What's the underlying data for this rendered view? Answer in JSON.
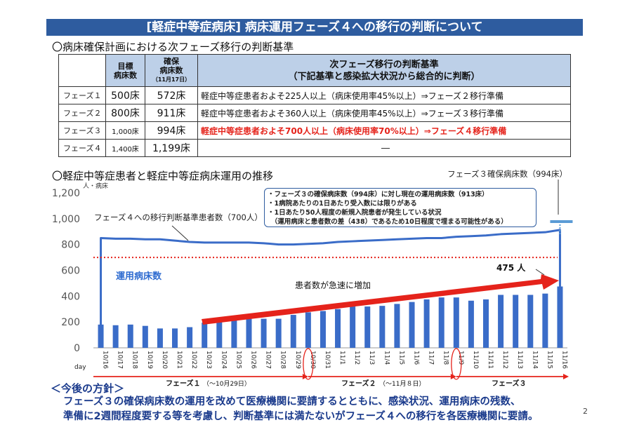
{
  "title": "[軽症中等症病床] 病床運用フェーズ４への移行の判断について",
  "section1": "〇病床確保計画における次フェーズ移行の判断基準",
  "table": {
    "head_target": [
      "目標",
      "病床数"
    ],
    "head_secured": [
      "確保",
      "病床数",
      "（11月17日）"
    ],
    "head_criteria": [
      "次フェーズ移行の判断基準",
      "（下記基準と感染拡大状況から総合的に判断）"
    ],
    "rows": [
      {
        "phase": "フェーズ１",
        "target": "500床",
        "secured": "572床",
        "criteria": "軽症中等症患者およそ225人以上（病床使用率45%以上）⇒フェーズ２移行準備",
        "red": false,
        "small": false
      },
      {
        "phase": "フェーズ２",
        "target": "800床",
        "secured": "911床",
        "criteria": "軽症中等症患者およそ360人以上（病床使用率45%以上）⇒フェーズ３移行準備",
        "red": false,
        "small": false
      },
      {
        "phase": "フェーズ３",
        "target": "1,000床",
        "secured": "994床",
        "criteria": "軽症中等症患者およそ700人以上（病床使用率70%以上）⇒フェーズ４移行準備",
        "red": true,
        "small": true
      },
      {
        "phase": "フェーズ４",
        "target": "1,400床",
        "secured": "1,199床",
        "criteria": "―",
        "red": false,
        "small": true
      }
    ]
  },
  "section2": "〇軽症中等症患者と軽症中等症病床運用の推移",
  "chart_data": {
    "type": "bar",
    "ylabel": "人・病床",
    "xlabel": "day",
    "ylim": [
      0,
      1200
    ],
    "yticks": [
      "0",
      "200",
      "400",
      "600",
      "800",
      "1,000",
      "1,200"
    ],
    "categories": [
      "10/16",
      "10/17",
      "10/18",
      "10/19",
      "10/20",
      "10/21",
      "10/22",
      "10/23",
      "10/24",
      "10/25",
      "10/26",
      "10/27",
      "10/28",
      "10/29",
      "10/30",
      "10/31",
      "11/1",
      "11/2",
      "11/3",
      "11/4",
      "11/5",
      "11/6",
      "11/7",
      "11/8",
      "11/9",
      "11/10",
      "11/11",
      "11/12",
      "11/13",
      "11/14",
      "11/15",
      "11/16"
    ],
    "series": [
      {
        "name": "患者数",
        "values": [
          180,
          175,
          180,
          170,
          150,
          150,
          160,
          195,
          200,
          220,
          225,
          225,
          225,
          255,
          275,
          285,
          300,
          320,
          320,
          325,
          340,
          355,
          375,
          390,
          390,
          365,
          375,
          410,
          410,
          410,
          420,
          475
        ]
      },
      {
        "name": "運用病床数",
        "values": [
          850,
          845,
          845,
          840,
          840,
          830,
          820,
          815,
          815,
          815,
          815,
          810,
          800,
          800,
          805,
          810,
          820,
          825,
          830,
          835,
          840,
          845,
          850,
          850,
          860,
          865,
          870,
          880,
          885,
          890,
          895,
          913
        ]
      }
    ],
    "threshold_label": "フェーズ４への移行判断基準患者数（700人）",
    "threshold_value": 700,
    "line_label": "運用病床数",
    "phase3_label": "フェーズ３確保病床数（994床）",
    "phase3_value": 994,
    "last_label": "475 人",
    "trend_label": "患者数が急速に増加",
    "phases": [
      {
        "name": "フェーズ１",
        "note": "（～10月29日）"
      },
      {
        "name": "フェーズ２",
        "note": "（～11月８日）"
      },
      {
        "name": "フェーズ３",
        "note": ""
      }
    ],
    "colors": {
      "bar": "#3a6cc8",
      "line": "#3a6cc8",
      "threshold": "#e5231b",
      "arrow": "#e5231b",
      "phase3": "#5b9bd5"
    }
  },
  "callout": [
    "・フェーズ３の確保病床数（994床）に対し現在の運用病床数（913床）",
    "・1病院あたりの1日あたり受入数には限りがある",
    "・1日あたり50人程度の新規入院患者が発生している状況",
    "　（運用病床と患者数の差（438）であるため10日程度で埋まる可能性がある）"
  ],
  "policy_heading": "＜今後の方針＞",
  "policy": [
    "フェーズ３の確保病床数の運用を改めて医療機関に要請するとともに、感染状況、運用病床の残数、",
    "準備に2週間程度要する等を考慮し、判断基準には満たないがフェーズ４への移行を各医療機関に要請。"
  ],
  "page_number": "2"
}
